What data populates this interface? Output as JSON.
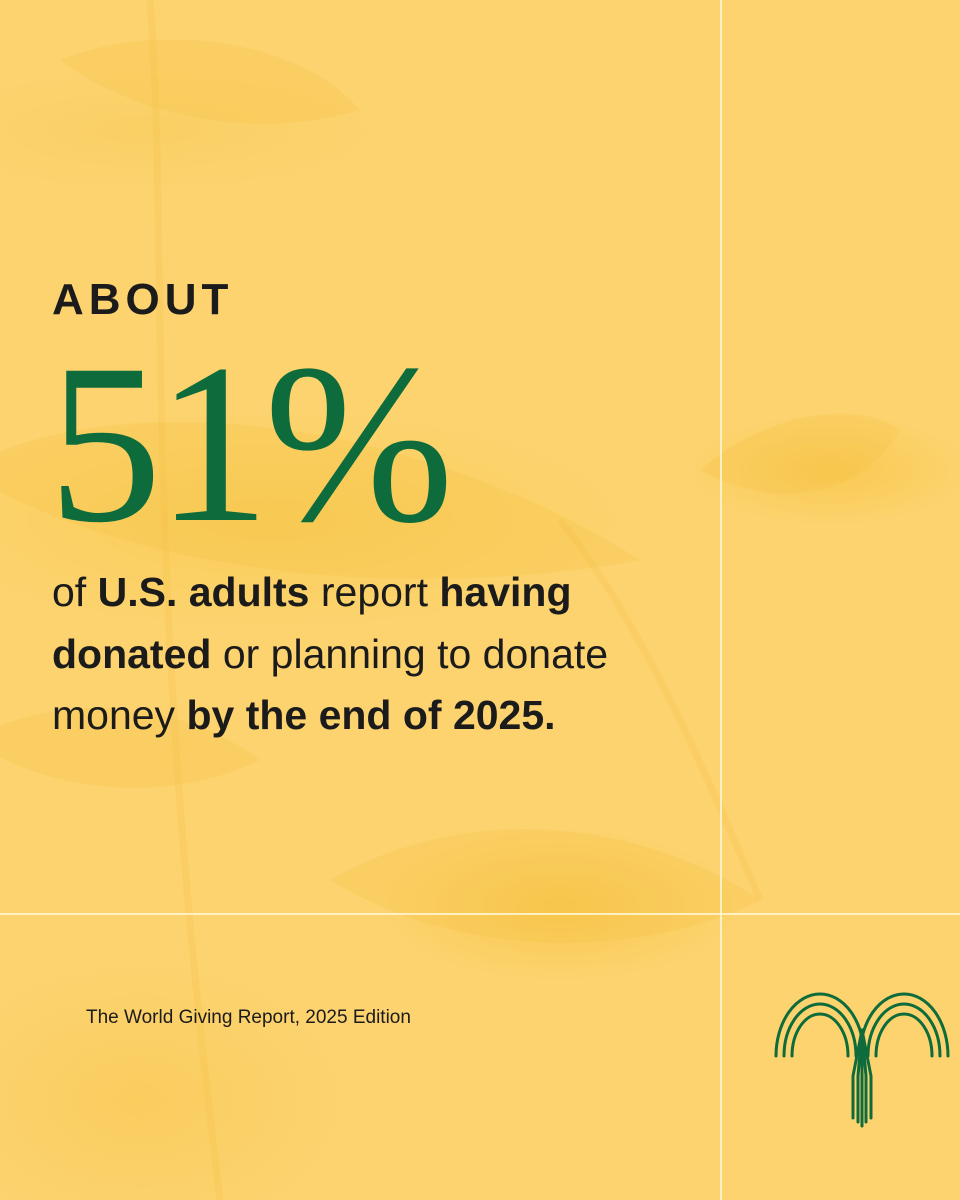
{
  "eyebrow": "ABOUT",
  "stat": "51%",
  "statement": [
    {
      "text": "of ",
      "bold": false
    },
    {
      "text": "U.S. adults",
      "bold": true
    },
    {
      "text": " report ",
      "bold": false
    },
    {
      "text": "having donated",
      "bold": true
    },
    {
      "text": " or planning to donate money ",
      "bold": false
    },
    {
      "text": "by the end of 2025.",
      "bold": true
    }
  ],
  "source": "The World Giving Report, 2025 Edition",
  "colors": {
    "background": "#fcd36f",
    "accent_green": "#0e6b3b",
    "text": "#1b1b1b",
    "grid_line": "#fff4cd"
  },
  "logo_icon": "fountain-arches-icon"
}
